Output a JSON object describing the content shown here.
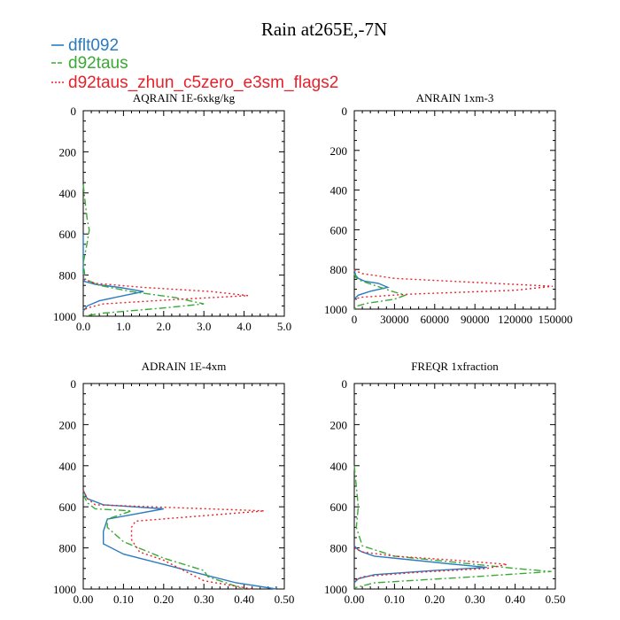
{
  "figure": {
    "title": "Rain at265E,-7N"
  },
  "legend": [
    {
      "label": "dflt092",
      "color": "#2b7bbf",
      "dash": "solid"
    },
    {
      "label": "d92taus",
      "color": "#3aaa35",
      "dash": "dashed"
    },
    {
      "label": "d92taus_zhun_c5zero_e3sm_flags2",
      "color": "#e8202a",
      "dash": "dotted"
    }
  ],
  "chart_data": [
    {
      "type": "line",
      "title": "AQRAIN  1E-6xkg/kg",
      "xlabel": "",
      "ylabel": "",
      "xlim": [
        0,
        5
      ],
      "ylim": [
        1000,
        0
      ],
      "xticks": [
        "0.0",
        "1.0",
        "2.0",
        "3.0",
        "4.0",
        "5.0"
      ],
      "xtick_values": [
        0,
        1,
        2,
        3,
        4,
        5
      ],
      "yticks": [
        "0",
        "200",
        "400",
        "600",
        "800",
        "1000"
      ],
      "ytick_values": [
        0,
        200,
        400,
        600,
        800,
        1000
      ],
      "series": [
        {
          "name": "dflt092",
          "x": [
            0,
            0,
            0,
            0,
            0.02,
            0.3,
            0.9,
            1.5,
            1.0,
            0.4,
            0.1,
            0
          ],
          "y": [
            600,
            650,
            700,
            800,
            830,
            845,
            860,
            880,
            900,
            925,
            950,
            975
          ]
        },
        {
          "name": "d92taus",
          "x": [
            0,
            0.05,
            0.1,
            0.15,
            0.1,
            0.05,
            0,
            0.05,
            0.4,
            1.2,
            2.3,
            3.0,
            2.0,
            0.5,
            0
          ],
          "y": [
            360,
            450,
            530,
            580,
            640,
            690,
            740,
            820,
            850,
            880,
            910,
            940,
            960,
            985,
            1000
          ]
        },
        {
          "name": "d92taus_zhun_c5zero_e3sm_flags2",
          "x": [
            0,
            0,
            0.3,
            1.5,
            3.2,
            4.1,
            2.2,
            0.5,
            0.1,
            0
          ],
          "y": [
            800,
            820,
            840,
            860,
            880,
            900,
            920,
            940,
            960,
            975
          ]
        }
      ]
    },
    {
      "type": "line",
      "title": "ANRAIN  1xm-3",
      "xlabel": "",
      "ylabel": "",
      "xlim": [
        0,
        150000
      ],
      "ylim": [
        1000,
        0
      ],
      "xticks": [
        "0",
        "30000",
        "60000",
        "90000",
        "120000",
        "150000"
      ],
      "xtick_values": [
        0,
        30000,
        60000,
        90000,
        120000,
        150000
      ],
      "yticks": [
        "0",
        "200",
        "400",
        "600",
        "800",
        "1000"
      ],
      "ytick_values": [
        0,
        200,
        400,
        600,
        800,
        1000
      ],
      "series": [
        {
          "name": "dflt092",
          "x": [
            0,
            1000,
            3000,
            8000,
            18000,
            25000,
            12000,
            3000,
            0
          ],
          "y": [
            800,
            830,
            845,
            860,
            870,
            890,
            910,
            930,
            950
          ]
        },
        {
          "name": "d92taus",
          "x": [
            0,
            1000,
            4000,
            15000,
            28000,
            38000,
            30000,
            10000,
            2000,
            0
          ],
          "y": [
            820,
            840,
            855,
            880,
            910,
            930,
            950,
            970,
            985,
            1000
          ]
        },
        {
          "name": "d92taus_zhun_c5zero_e3sm_flags2",
          "x": [
            0,
            5000,
            30000,
            90000,
            148000,
            120000,
            40000,
            5000,
            0
          ],
          "y": [
            800,
            820,
            845,
            865,
            885,
            905,
            925,
            940,
            950
          ]
        }
      ]
    },
    {
      "type": "line",
      "title": "ADRAIN  1E-4xm",
      "xlabel": "",
      "ylabel": "",
      "xlim": [
        0,
        0.5
      ],
      "ylim": [
        1000,
        0
      ],
      "xticks": [
        "0.00",
        "0.10",
        "0.20",
        "0.30",
        "0.40",
        "0.50"
      ],
      "xtick_values": [
        0,
        0.1,
        0.2,
        0.3,
        0.4,
        0.5
      ],
      "yticks": [
        "0",
        "200",
        "400",
        "600",
        "800",
        "1000"
      ],
      "ytick_values": [
        0,
        200,
        400,
        600,
        800,
        1000
      ],
      "series": [
        {
          "name": "dflt092",
          "x": [
            0,
            0.01,
            0.05,
            0.2,
            0.06,
            0.05,
            0.05,
            0.1,
            0.2,
            0.3,
            0.38,
            0.48
          ],
          "y": [
            520,
            560,
            590,
            610,
            660,
            720,
            780,
            830,
            880,
            930,
            970,
            1000
          ]
        },
        {
          "name": "d92taus",
          "x": [
            0,
            0.01,
            0.03,
            0.12,
            0.06,
            0.06,
            0.1,
            0.2,
            0.3,
            0.31,
            0.4
          ],
          "y": [
            540,
            580,
            610,
            620,
            660,
            700,
            770,
            850,
            910,
            940,
            1000
          ]
        },
        {
          "name": "d92taus_zhun_c5zero_e3sm_flags2",
          "x": [
            0,
            0.01,
            0.03,
            0.45,
            0.13,
            0.12,
            0.12,
            0.14,
            0.2,
            0.25,
            0.3,
            0.42
          ],
          "y": [
            520,
            560,
            590,
            620,
            670,
            700,
            760,
            820,
            860,
            910,
            960,
            1000
          ]
        }
      ]
    },
    {
      "type": "line",
      "title": "FREQR  1xfraction",
      "xlabel": "",
      "ylabel": "",
      "xlim": [
        0,
        0.5
      ],
      "ylim": [
        1000,
        0
      ],
      "xticks": [
        "0.00",
        "0.10",
        "0.20",
        "0.30",
        "0.40",
        "0.50"
      ],
      "xtick_values": [
        0,
        0.1,
        0.2,
        0.3,
        0.4,
        0.5
      ],
      "yticks": [
        "0",
        "200",
        "400",
        "600",
        "800",
        "1000"
      ],
      "ytick_values": [
        0,
        200,
        400,
        600,
        800,
        1000
      ],
      "series": [
        {
          "name": "dflt092",
          "x": [
            0,
            0.01,
            0.02,
            0.05,
            0.15,
            0.25,
            0.33,
            0.2,
            0.05,
            0.01,
            0
          ],
          "y": [
            790,
            810,
            820,
            840,
            860,
            880,
            895,
            910,
            930,
            950,
            970
          ]
        },
        {
          "name": "d92taus",
          "x": [
            0,
            0.005,
            0.01,
            0.005,
            0.02,
            0.1,
            0.25,
            0.4,
            0.49,
            0.3,
            0.05,
            0
          ],
          "y": [
            400,
            500,
            600,
            700,
            790,
            840,
            870,
            900,
            915,
            940,
            970,
            995
          ]
        },
        {
          "name": "d92taus_zhun_c5zero_e3sm_flags2",
          "x": [
            0,
            0.02,
            0.1,
            0.25,
            0.38,
            0.33,
            0.15,
            0.02,
            0
          ],
          "y": [
            800,
            820,
            840,
            860,
            880,
            900,
            920,
            940,
            960
          ]
        }
      ]
    }
  ]
}
